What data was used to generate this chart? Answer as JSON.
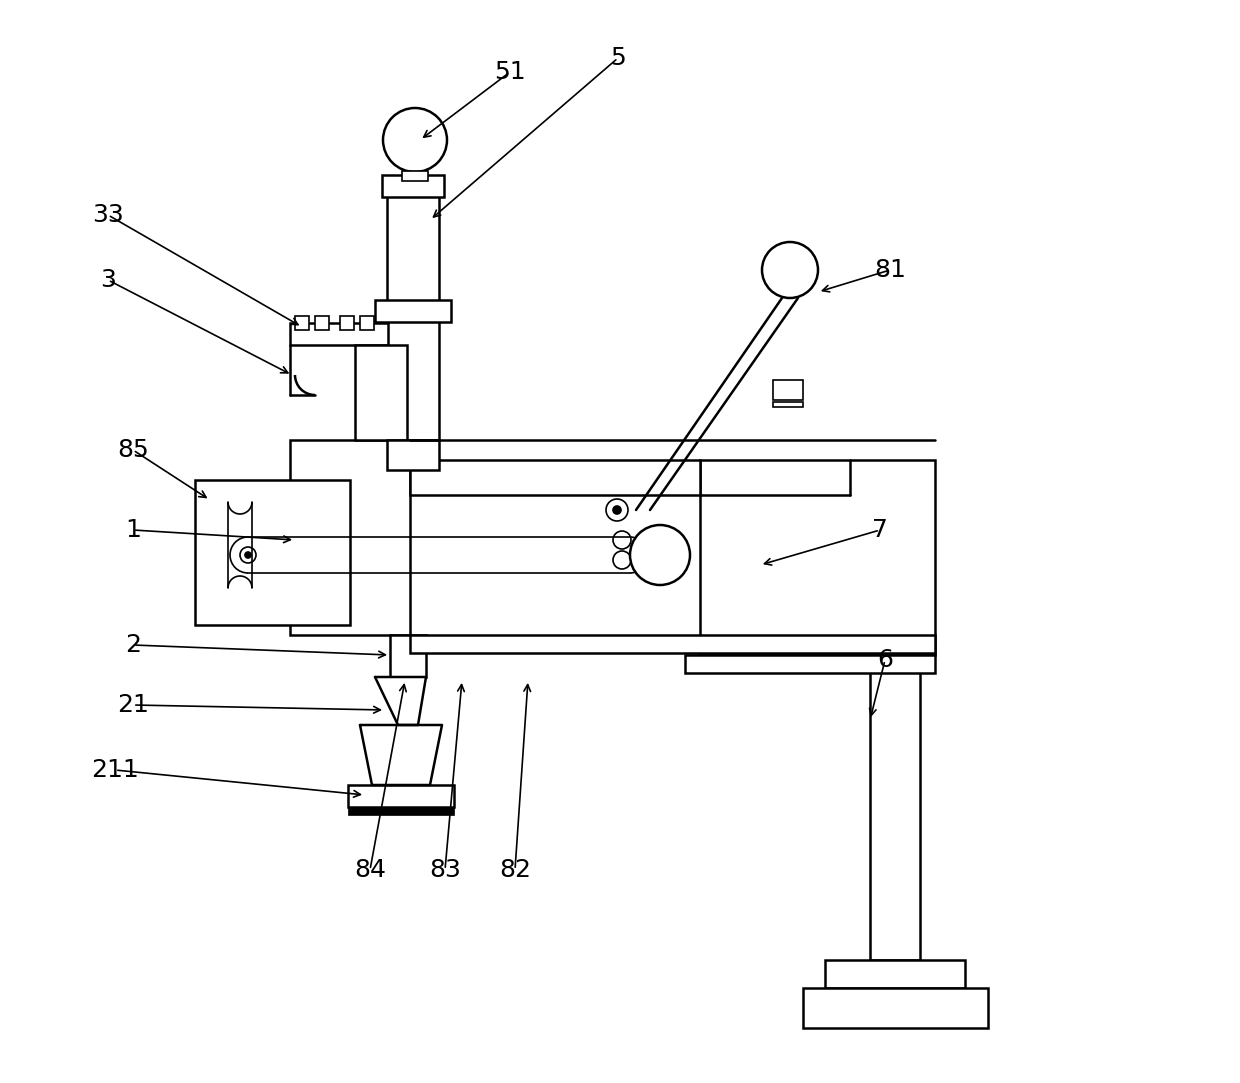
{
  "bg_color": "#ffffff",
  "line_color": "#000000",
  "lw": 1.8,
  "lw_thin": 1.2,
  "fs": 18,
  "figsize": [
    12.4,
    10.83
  ],
  "dpi": 100
}
